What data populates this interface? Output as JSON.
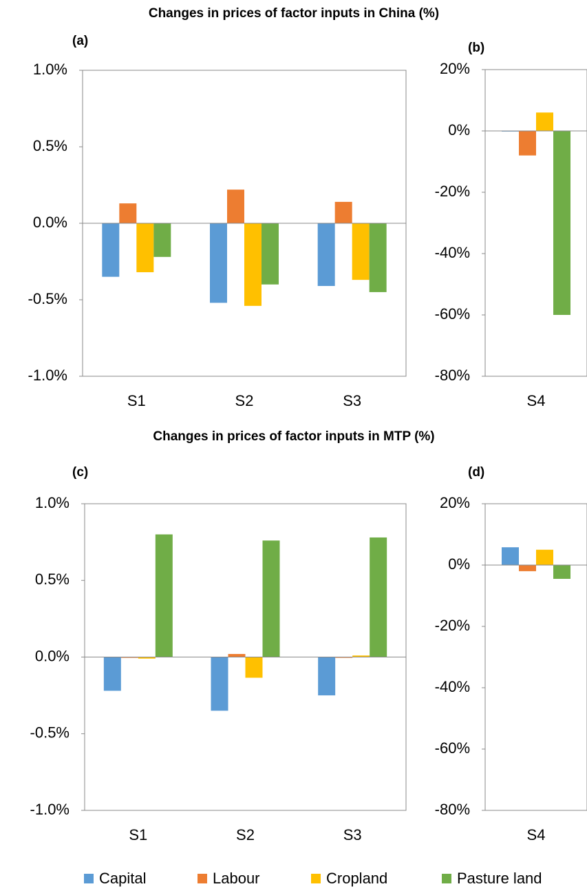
{
  "chart_data": [
    {
      "type": "bar",
      "title": "Changes in prices of factor inputs in China (%)",
      "label": "(a)",
      "categories": [
        "S1",
        "S2",
        "S3"
      ],
      "ylim": [
        -1,
        1
      ],
      "yticks": [
        {
          "value": 1,
          "label": "1.0%"
        },
        {
          "value": 0.5,
          "label": "0.5%"
        },
        {
          "value": 0,
          "label": "0.0%"
        },
        {
          "value": -0.5,
          "label": "-0.5%"
        },
        {
          "value": -1,
          "label": "-1.0%"
        }
      ],
      "legend": "bottom",
      "series": [
        {
          "name": "Capital",
          "color": "#5b9bd5",
          "values": [
            -0.35,
            -0.52,
            -0.41
          ]
        },
        {
          "name": "Labour",
          "color": "#ed7d31",
          "values": [
            0.13,
            0.22,
            0.14
          ]
        },
        {
          "name": "Cropland",
          "color": "#ffc000",
          "values": [
            -0.32,
            -0.54,
            -0.37
          ]
        },
        {
          "name": "Pasture land",
          "color": "#70ad47",
          "values": [
            -0.22,
            -0.4,
            -0.45
          ]
        }
      ]
    },
    {
      "type": "bar",
      "label": "(b)",
      "categories": [
        "S4"
      ],
      "ylim": [
        -80,
        20
      ],
      "yticks": [
        {
          "value": 20,
          "label": "20%"
        },
        {
          "value": 0,
          "label": "0%"
        },
        {
          "value": -20,
          "label": "-20%"
        },
        {
          "value": -40,
          "label": "-40%"
        },
        {
          "value": -60,
          "label": "-60%"
        },
        {
          "value": -80,
          "label": "-80%"
        }
      ],
      "series": [
        {
          "color": "#5b9bd5",
          "values": [
            -0.2
          ]
        },
        {
          "color": "#ed7d31",
          "values": [
            -8
          ]
        },
        {
          "color": "#ffc000",
          "values": [
            6
          ]
        },
        {
          "color": "#70ad47",
          "values": [
            -60
          ]
        }
      ]
    },
    {
      "type": "bar",
      "title": "Changes in prices of factor inputs in MTP (%)",
      "label": "(c)",
      "categories": [
        "S1",
        "S2",
        "S3"
      ],
      "ylim": [
        -1,
        1
      ],
      "yticks": [
        {
          "value": 1,
          "label": "1.0%"
        },
        {
          "value": 0.5,
          "label": "0.5%"
        },
        {
          "value": 0,
          "label": "0.0%"
        },
        {
          "value": -0.5,
          "label": "-0.5%"
        },
        {
          "value": -1,
          "label": "-1.0%"
        }
      ],
      "series": [
        {
          "color": "#5b9bd5",
          "values": [
            -0.22,
            -0.35,
            -0.25
          ]
        },
        {
          "color": "#ed7d31",
          "values": [
            -0.005,
            0.02,
            -0.005
          ]
        },
        {
          "color": "#ffc000",
          "values": [
            -0.01,
            -0.135,
            0.01
          ]
        },
        {
          "color": "#70ad47",
          "values": [
            0.8,
            0.76,
            0.78
          ]
        }
      ]
    },
    {
      "type": "bar",
      "label": "(d)",
      "categories": [
        "S4"
      ],
      "ylim": [
        -80,
        20
      ],
      "yticks": [
        {
          "value": 20,
          "label": "20%"
        },
        {
          "value": 0,
          "label": "0%"
        },
        {
          "value": -20,
          "label": "-20%"
        },
        {
          "value": -40,
          "label": "-40%"
        },
        {
          "value": -60,
          "label": "-60%"
        },
        {
          "value": -80,
          "label": "-80%"
        }
      ],
      "series": [
        {
          "color": "#5b9bd5",
          "values": [
            5.8
          ]
        },
        {
          "color": "#ed7d31",
          "values": [
            -2
          ]
        },
        {
          "color": "#ffc000",
          "values": [
            5
          ]
        },
        {
          "color": "#70ad47",
          "values": [
            -4.5
          ]
        }
      ]
    }
  ]
}
